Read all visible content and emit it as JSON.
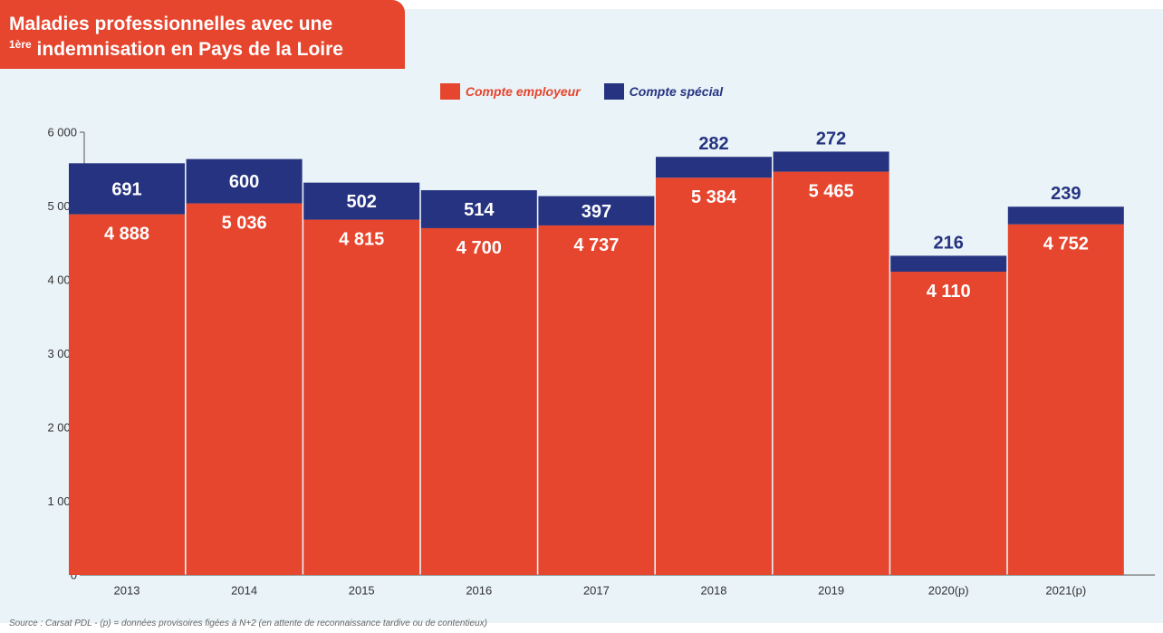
{
  "title_line1": "Maladies professionnelles avec une",
  "title_line2_sup": "1ère",
  "title_line2": "indemnisation en Pays de la Loire",
  "source": "Source : Carsat PDL - (p) = données provisoires figées à N+2 (en attente de reconnaissance tardive ou de contentieux)",
  "colors": {
    "employeur": "#e6452e",
    "special": "#263380",
    "panel": "#e9f3f8"
  },
  "chart_data": {
    "type": "bar",
    "stacked": true,
    "categories": [
      "2013",
      "2014",
      "2015",
      "2016",
      "2017",
      "2018",
      "2019",
      "2020(p)",
      "2021(p)"
    ],
    "series": [
      {
        "name": "Compte employeur",
        "values": [
          4888,
          5036,
          4815,
          4700,
          4737,
          5384,
          5465,
          4110,
          4752
        ],
        "labels": [
          "4 888",
          "5 036",
          "4 815",
          "4 700",
          "4 737",
          "5 384",
          "5 465",
          "4 110",
          "4 752"
        ]
      },
      {
        "name": "Compte spécial",
        "values": [
          691,
          600,
          502,
          514,
          397,
          282,
          272,
          216,
          239
        ],
        "labels": [
          "691",
          "600",
          "502",
          "514",
          "397",
          "282",
          "272",
          "216",
          "239"
        ]
      }
    ],
    "ylim": [
      0,
      6000
    ],
    "yticks": [
      0,
      1000,
      2000,
      3000,
      4000,
      5000,
      6000
    ],
    "ytick_labels": [
      "0",
      "1 000",
      "2 000",
      "3 000",
      "4 000",
      "5 000",
      "6 000"
    ],
    "legend_position": "top-center",
    "grid": false
  }
}
